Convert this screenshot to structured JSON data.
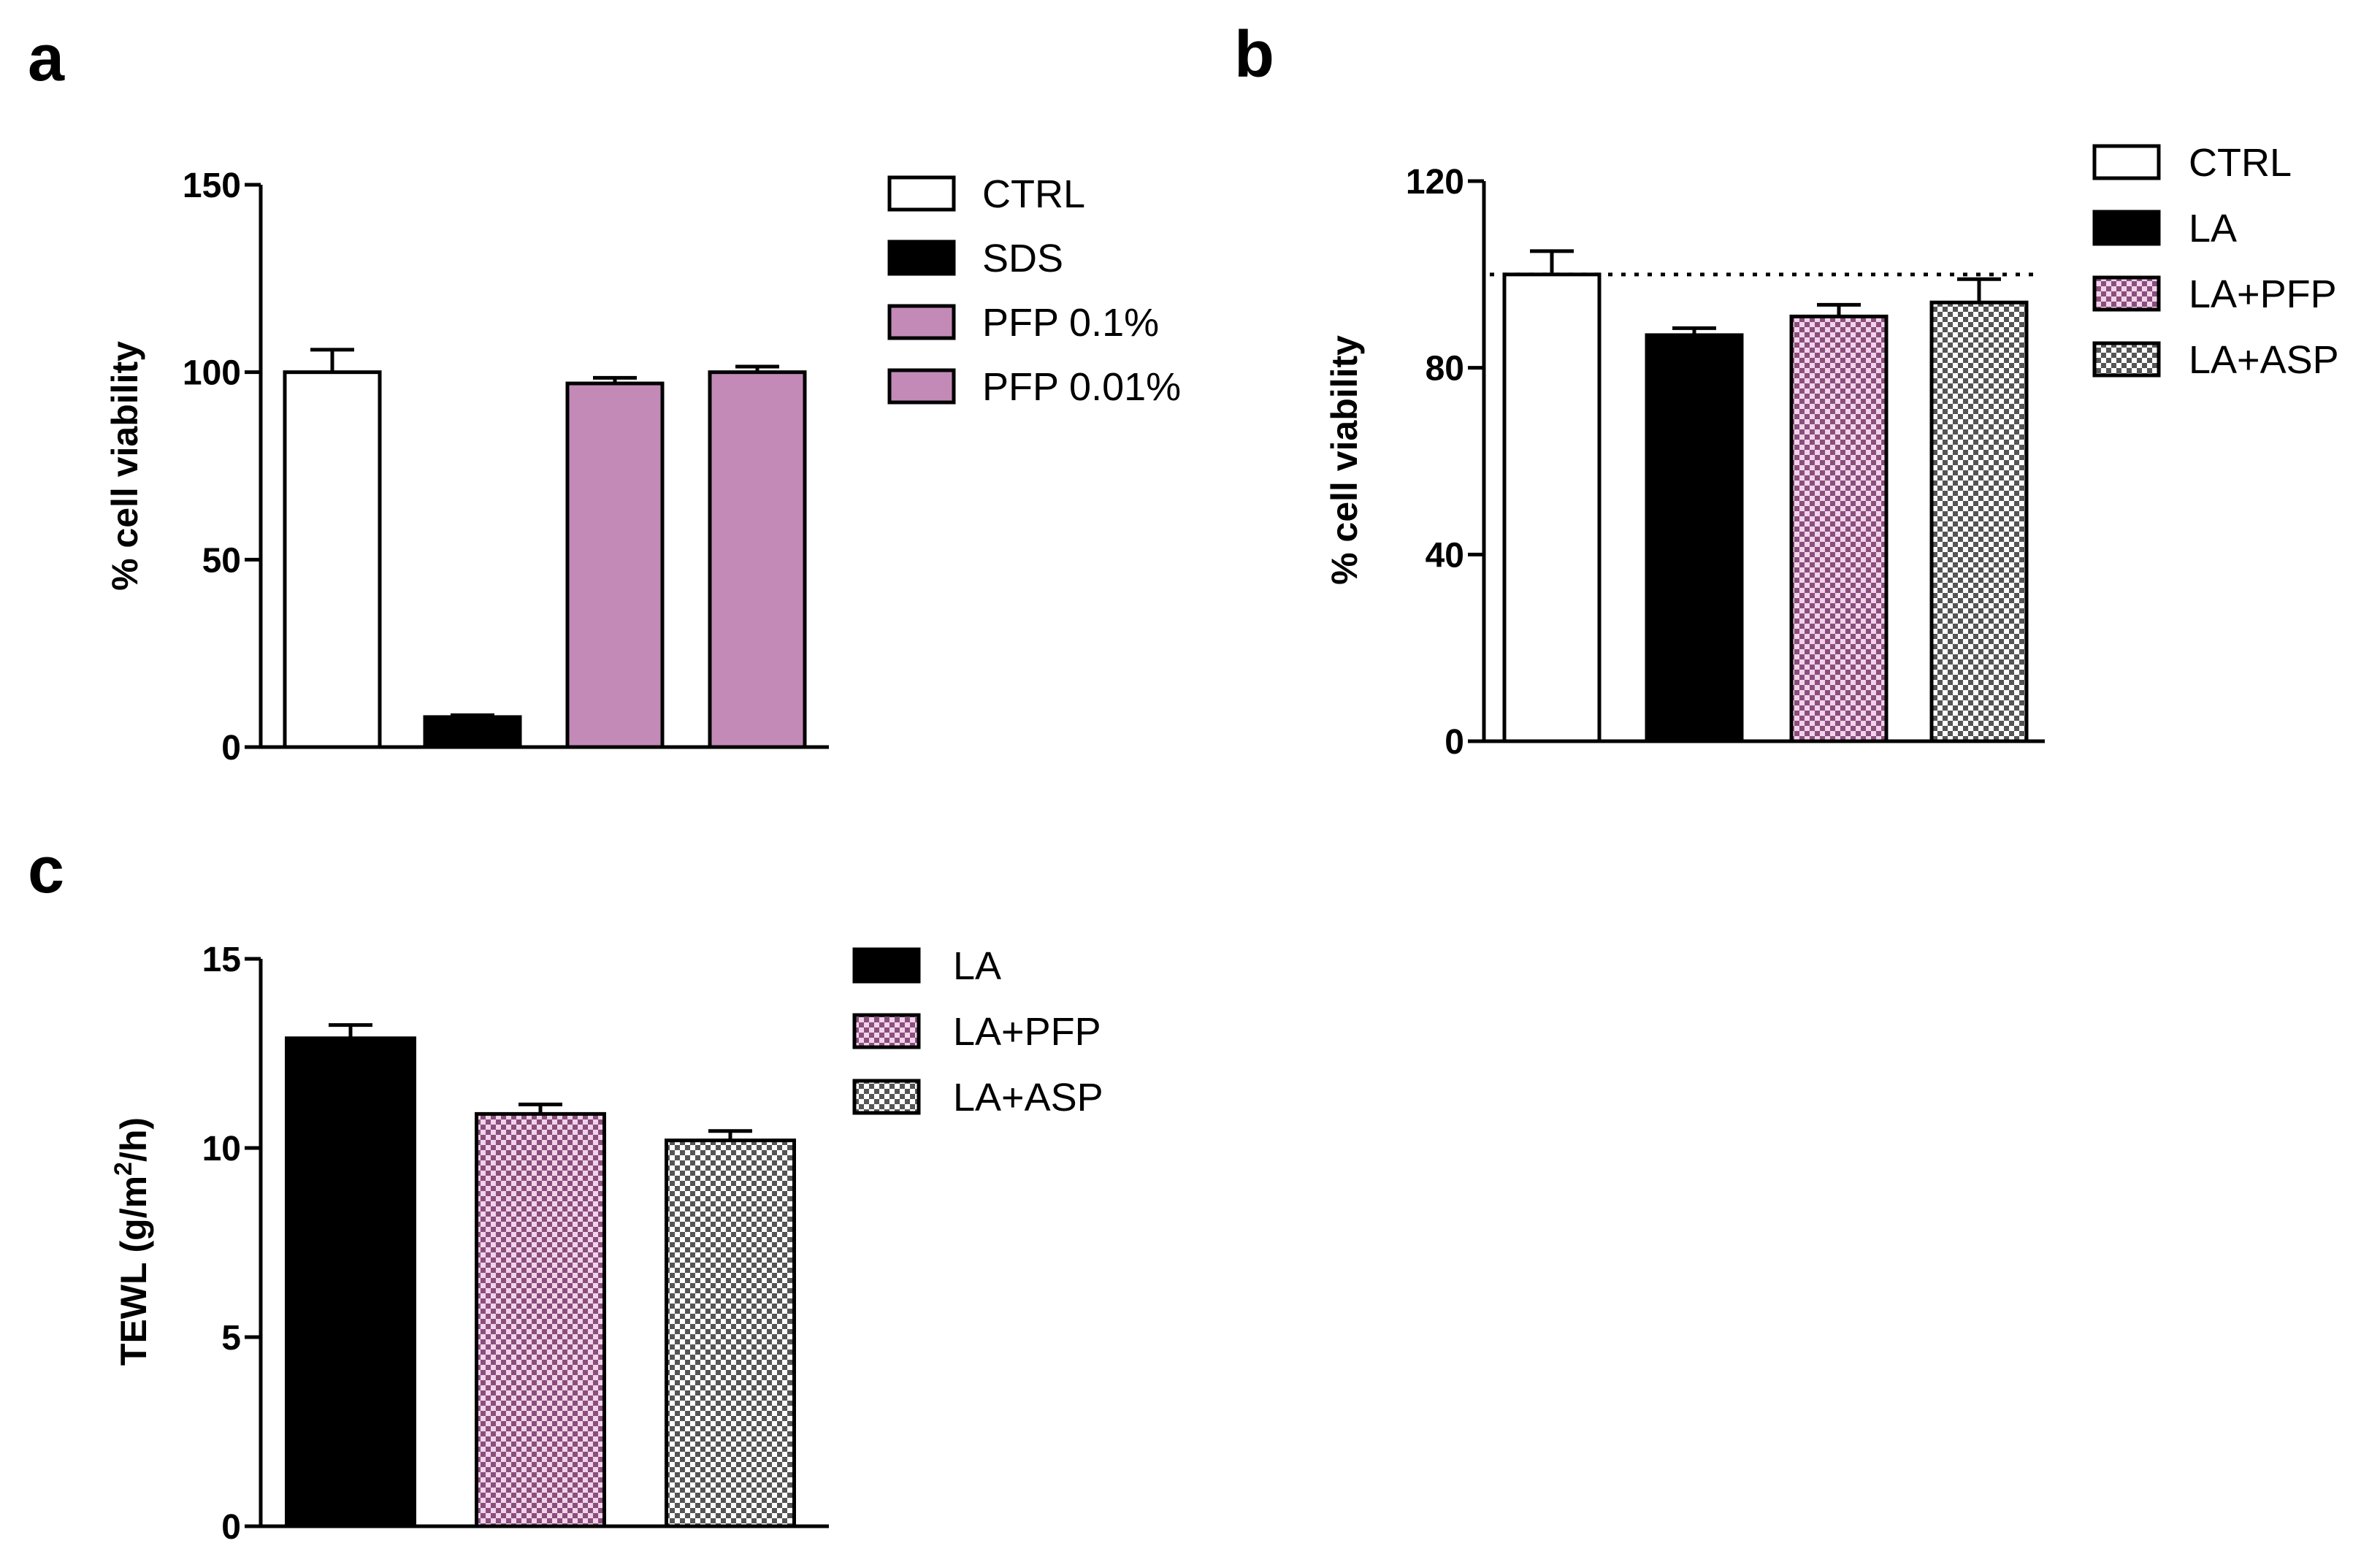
{
  "colors": {
    "ctrl": "#ffffff",
    "black": "#000000",
    "pfp": "#c38ab8",
    "pfp_check_a": "#8a4f7d",
    "pfp_check_b": "#f2d3ea",
    "asp_check_a": "#555555",
    "asp_check_b": "#ffffff"
  },
  "chart_data": [
    {
      "panel": "a",
      "type": "bar",
      "title": "",
      "xlabel": "",
      "ylabel": "% cell viability",
      "ylim": [
        0,
        150
      ],
      "yticks": [
        0,
        50,
        100,
        150
      ],
      "categories": [
        "CTRL",
        "SDS",
        "PFP 0.1%",
        "PFP 0.01%"
      ],
      "values": [
        100,
        8,
        97,
        100
      ],
      "errors": [
        6,
        0.5,
        1.5,
        1.5
      ],
      "fills": [
        "ctrl",
        "black",
        "pfp",
        "pfp"
      ],
      "legend": [
        "CTRL",
        "SDS",
        "PFP 0.1%",
        "PFP 0.01%"
      ],
      "legend_position": "right"
    },
    {
      "panel": "b",
      "type": "bar",
      "title": "",
      "xlabel": "",
      "ylabel": "% cell viability",
      "ylim": [
        0,
        120
      ],
      "yticks": [
        0,
        40,
        80,
        120
      ],
      "categories": [
        "CTRL",
        "LA",
        "LA+PFP",
        "LA+ASP"
      ],
      "values": [
        100,
        87,
        91,
        94
      ],
      "errors": [
        5,
        1.5,
        2.5,
        5
      ],
      "fills": [
        "ctrl",
        "black",
        "pfp_check",
        "asp_check"
      ],
      "reference_line": 100,
      "legend": [
        "CTRL",
        "LA",
        "LA+PFP",
        "LA+ASP"
      ],
      "legend_position": "right"
    },
    {
      "panel": "c",
      "type": "bar",
      "title": "",
      "xlabel": "",
      "ylabel_main": "TEWL (g/m",
      "ylabel_sup": "2",
      "ylabel_end": "/h)",
      "ylim": [
        0,
        15
      ],
      "yticks": [
        0,
        5,
        10,
        15
      ],
      "categories": [
        "LA",
        "LA+PFP",
        "LA+ASP"
      ],
      "values": [
        12.9,
        10.9,
        10.2
      ],
      "errors": [
        0.35,
        0.25,
        0.25
      ],
      "fills": [
        "black",
        "pfp_check",
        "asp_check"
      ],
      "legend": [
        "LA",
        "LA+PFP",
        "LA+ASP"
      ],
      "legend_position": "right"
    }
  ]
}
